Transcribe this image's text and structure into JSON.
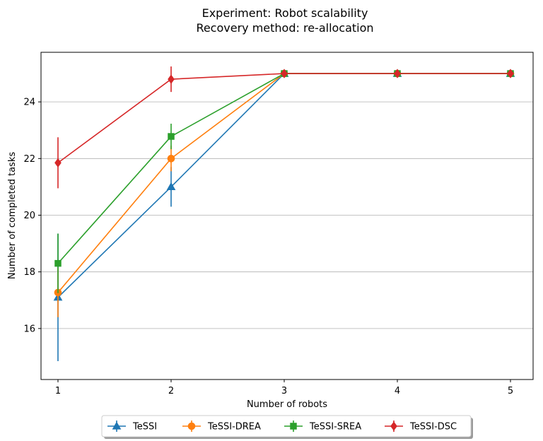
{
  "chart_data": {
    "type": "line",
    "title": [
      "Experiment: Robot scalability",
      "Recovery method: re-allocation"
    ],
    "xlabel": "Number of robots",
    "ylabel": "Number of completed tasks",
    "x": [
      1,
      2,
      3,
      4,
      5
    ],
    "xticks": [
      "1",
      "2",
      "3",
      "4",
      "5"
    ],
    "yticks": [
      "16",
      "18",
      "20",
      "22",
      "24"
    ],
    "xlim": [
      0.85,
      5.2
    ],
    "ylim": [
      14.2,
      25.75
    ],
    "grid": "horizontal",
    "legend_position": "bottom-center",
    "series": [
      {
        "name": "TeSSI",
        "color": "#1f77b4",
        "marker": "triangle",
        "values": [
          17.1,
          21.0,
          25.0,
          25.0,
          25.0
        ],
        "errors": [
          2.25,
          0.7,
          0.0,
          0.0,
          0.0
        ]
      },
      {
        "name": "TeSSI-DREA",
        "color": "#ff7f0e",
        "marker": "circle",
        "values": [
          17.27,
          22.0,
          25.0,
          25.0,
          25.0
        ],
        "errors": [
          0.87,
          0.45,
          0.0,
          0.0,
          0.0
        ]
      },
      {
        "name": "TeSSI-SREA",
        "color": "#2ca02c",
        "marker": "square",
        "values": [
          18.3,
          22.78,
          25.0,
          25.0,
          25.0
        ],
        "errors": [
          1.05,
          0.45,
          0.0,
          0.0,
          0.0
        ]
      },
      {
        "name": "TeSSI-DSC",
        "color": "#d62728",
        "marker": "diamond",
        "values": [
          21.85,
          24.8,
          25.0,
          25.0,
          25.0
        ],
        "errors": [
          0.9,
          0.45,
          0.0,
          0.0,
          0.0
        ]
      }
    ]
  }
}
